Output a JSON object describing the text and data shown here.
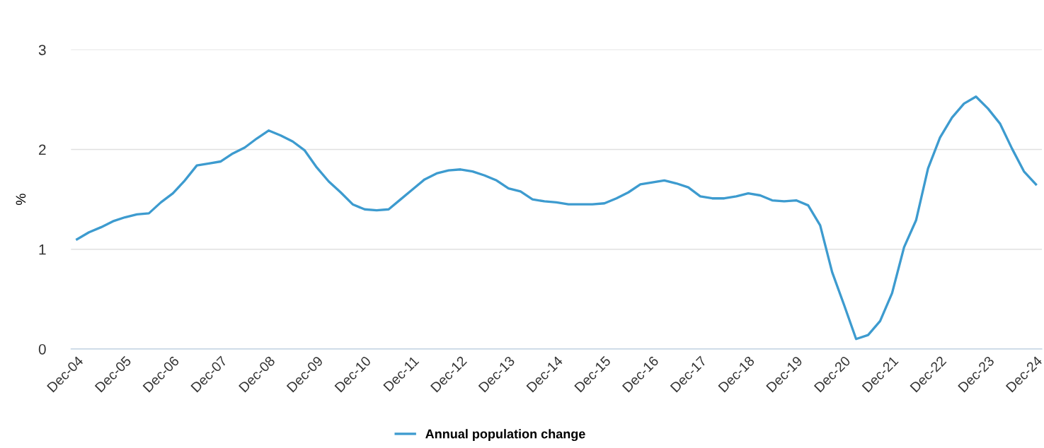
{
  "chart_data": {
    "type": "line",
    "ylabel": "%",
    "categories": [
      "Dec-04",
      null,
      null,
      null,
      "Dec-05",
      null,
      null,
      null,
      "Dec-06",
      null,
      null,
      null,
      "Dec-07",
      null,
      null,
      null,
      "Dec-08",
      null,
      null,
      null,
      "Dec-09",
      null,
      null,
      null,
      "Dec-10",
      null,
      null,
      null,
      "Dec-11",
      null,
      null,
      null,
      "Dec-12",
      null,
      null,
      null,
      "Dec-13",
      null,
      null,
      null,
      "Dec-14",
      null,
      null,
      null,
      "Dec-15",
      null,
      null,
      null,
      "Dec-16",
      null,
      null,
      null,
      "Dec-17",
      null,
      null,
      null,
      "Dec-18",
      null,
      null,
      null,
      "Dec-19",
      null,
      null,
      null,
      "Dec-20",
      null,
      null,
      null,
      "Dec-21",
      null,
      null,
      null,
      "Dec-22",
      null,
      null,
      null,
      "Dec-23",
      null,
      null,
      null,
      "Dec-24"
    ],
    "series": [
      {
        "name": "Annual population change",
        "color": "#3d9bcf",
        "values": [
          1.1,
          1.17,
          1.22,
          1.28,
          1.32,
          1.35,
          1.36,
          1.47,
          1.56,
          1.69,
          1.84,
          1.86,
          1.88,
          1.96,
          2.02,
          2.11,
          2.19,
          2.14,
          2.08,
          1.99,
          1.82,
          1.68,
          1.57,
          1.45,
          1.4,
          1.39,
          1.4,
          1.5,
          1.6,
          1.7,
          1.76,
          1.79,
          1.8,
          1.78,
          1.74,
          1.69,
          1.61,
          1.58,
          1.5,
          1.48,
          1.47,
          1.45,
          1.45,
          1.45,
          1.46,
          1.51,
          1.57,
          1.65,
          1.67,
          1.69,
          1.66,
          1.62,
          1.53,
          1.51,
          1.51,
          1.53,
          1.56,
          1.54,
          1.49,
          1.48,
          1.49,
          1.44,
          1.24,
          0.77,
          0.44,
          0.1,
          0.14,
          0.28,
          0.56,
          1.02,
          1.29,
          1.81,
          2.12,
          2.32,
          2.46,
          2.53,
          2.41,
          2.26,
          2.01,
          1.78,
          1.65
        ]
      }
    ],
    "ylim": [
      0,
      3
    ],
    "yticks": [
      0,
      1,
      2,
      3
    ],
    "grid": "y",
    "legend": "bottom",
    "marker": "none",
    "line_style": "solid"
  }
}
